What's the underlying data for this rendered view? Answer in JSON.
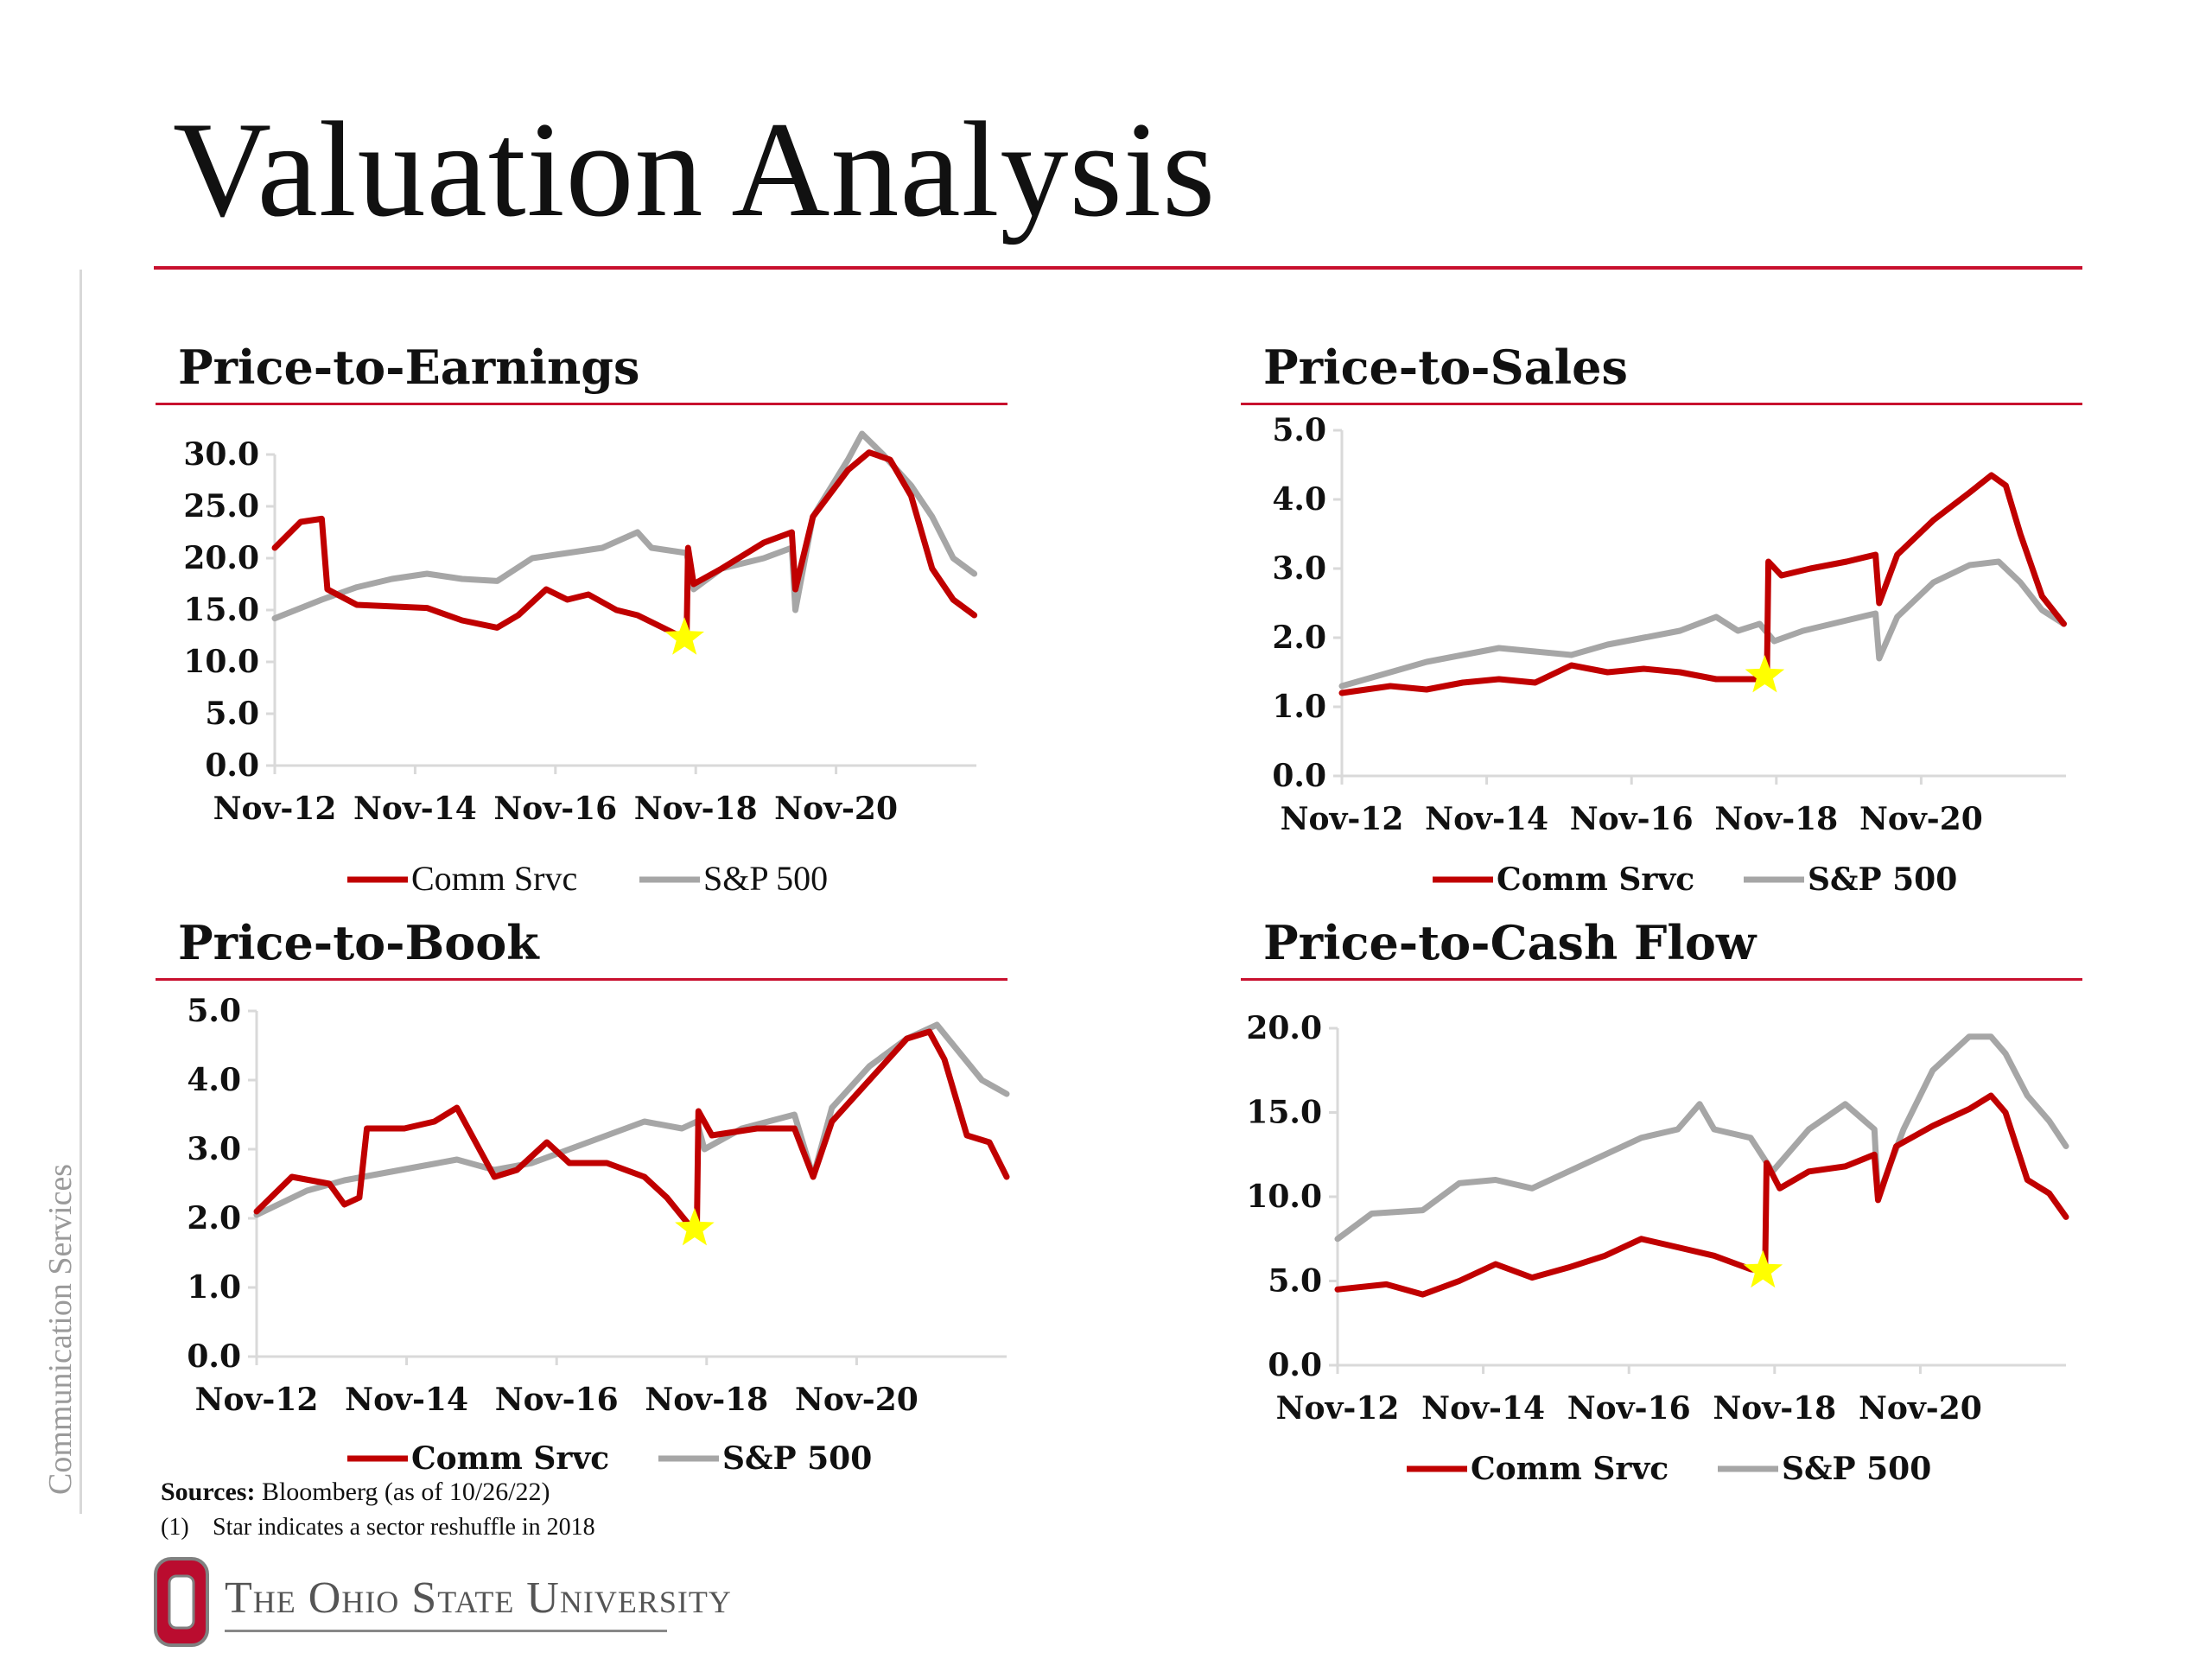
{
  "page": {
    "title": "Valuation Analysis",
    "side_label": "Communication Services",
    "sources_label": "Sources:",
    "sources_text": " Bloomberg (as of 10/26/22)",
    "note_number": "(1)",
    "note_text": "Star indicates a sector reshuffle in 2018",
    "logo_text": "The Ohio State University",
    "colors": {
      "accent": "#c8102e",
      "comm": "#c00000",
      "sp": "#a6a6a6",
      "star": "#ffff00"
    }
  },
  "chart_data": [
    {
      "type": "line",
      "title": "Price-to-Earnings",
      "x_ticks": [
        "Nov-12",
        "Nov-14",
        "Nov-16",
        "Nov-18",
        "Nov-20"
      ],
      "y_ticks": [
        "0.0",
        "5.0",
        "10.0",
        "15.0",
        "20.0",
        "25.0",
        "30.0"
      ],
      "ylim": [
        0,
        30
      ],
      "xlim": [
        2012.83,
        2022.83
      ],
      "legend": [
        "Comm Srvc",
        "S&P 500"
      ],
      "legend_bold": false,
      "star": {
        "x": 2018.67,
        "y": 12.3
      },
      "series": [
        {
          "name": "Comm Srvc",
          "color": "#c00000",
          "points": [
            [
              2012.83,
              21.0
            ],
            [
              2013.2,
              23.5
            ],
            [
              2013.5,
              23.8
            ],
            [
              2013.58,
              17.0
            ],
            [
              2014.0,
              15.5
            ],
            [
              2015.0,
              15.2
            ],
            [
              2015.5,
              14.0
            ],
            [
              2016.0,
              13.3
            ],
            [
              2016.3,
              14.5
            ],
            [
              2016.7,
              17.0
            ],
            [
              2017.0,
              16.0
            ],
            [
              2017.3,
              16.5
            ],
            [
              2017.7,
              15.0
            ],
            [
              2018.0,
              14.5
            ],
            [
              2018.3,
              13.5
            ],
            [
              2018.6,
              12.5
            ],
            [
              2018.7,
              12.3
            ],
            [
              2018.72,
              21.0
            ],
            [
              2018.8,
              17.5
            ],
            [
              2019.2,
              19.0
            ],
            [
              2019.8,
              21.5
            ],
            [
              2020.2,
              22.5
            ],
            [
              2020.25,
              17.0
            ],
            [
              2020.5,
              24.0
            ],
            [
              2021.0,
              28.5
            ],
            [
              2021.3,
              30.2
            ],
            [
              2021.6,
              29.5
            ],
            [
              2021.9,
              26.0
            ],
            [
              2022.2,
              19.0
            ],
            [
              2022.5,
              16.0
            ],
            [
              2022.8,
              14.5
            ]
          ]
        },
        {
          "name": "S&P 500",
          "color": "#a6a6a6",
          "points": [
            [
              2012.83,
              14.2
            ],
            [
              2013.5,
              16.0
            ],
            [
              2014.0,
              17.2
            ],
            [
              2014.5,
              18.0
            ],
            [
              2015.0,
              18.5
            ],
            [
              2015.5,
              18.0
            ],
            [
              2016.0,
              17.8
            ],
            [
              2016.5,
              20.0
            ],
            [
              2017.0,
              20.5
            ],
            [
              2017.5,
              21.0
            ],
            [
              2018.0,
              22.5
            ],
            [
              2018.2,
              21.0
            ],
            [
              2018.7,
              20.5
            ],
            [
              2018.8,
              17.0
            ],
            [
              2019.2,
              19.0
            ],
            [
              2019.8,
              20.0
            ],
            [
              2020.2,
              21.0
            ],
            [
              2020.25,
              15.0
            ],
            [
              2020.5,
              24.0
            ],
            [
              2021.0,
              29.5
            ],
            [
              2021.2,
              32.0
            ],
            [
              2021.5,
              30.0
            ],
            [
              2021.9,
              27.0
            ],
            [
              2022.2,
              24.0
            ],
            [
              2022.5,
              20.0
            ],
            [
              2022.8,
              18.5
            ]
          ]
        }
      ]
    },
    {
      "type": "line",
      "title": "Price-to-Sales",
      "x_ticks": [
        "Nov-12",
        "Nov-14",
        "Nov-16",
        "Nov-18",
        "Nov-20"
      ],
      "y_ticks": [
        "0.0",
        "1.0",
        "2.0",
        "3.0",
        "4.0",
        "5.0"
      ],
      "ylim": [
        0,
        5
      ],
      "xlim": [
        2012.83,
        2022.83
      ],
      "legend": [
        "Comm Srvc",
        "S&P 500"
      ],
      "legend_bold": true,
      "star": {
        "x": 2018.67,
        "y": 1.45
      },
      "series": [
        {
          "name": "Comm Srvc",
          "color": "#c00000",
          "points": [
            [
              2012.83,
              1.2
            ],
            [
              2013.5,
              1.3
            ],
            [
              2014.0,
              1.25
            ],
            [
              2014.5,
              1.35
            ],
            [
              2015.0,
              1.4
            ],
            [
              2015.5,
              1.35
            ],
            [
              2016.0,
              1.6
            ],
            [
              2016.5,
              1.5
            ],
            [
              2017.0,
              1.55
            ],
            [
              2017.5,
              1.5
            ],
            [
              2018.0,
              1.4
            ],
            [
              2018.6,
              1.4
            ],
            [
              2018.7,
              1.45
            ],
            [
              2018.72,
              3.1
            ],
            [
              2018.9,
              2.9
            ],
            [
              2019.3,
              3.0
            ],
            [
              2019.8,
              3.1
            ],
            [
              2020.2,
              3.2
            ],
            [
              2020.25,
              2.5
            ],
            [
              2020.5,
              3.2
            ],
            [
              2021.0,
              3.7
            ],
            [
              2021.5,
              4.1
            ],
            [
              2021.8,
              4.35
            ],
            [
              2022.0,
              4.2
            ],
            [
              2022.2,
              3.5
            ],
            [
              2022.5,
              2.6
            ],
            [
              2022.8,
              2.2
            ]
          ]
        },
        {
          "name": "S&P 500",
          "color": "#a6a6a6",
          "points": [
            [
              2012.83,
              1.3
            ],
            [
              2013.5,
              1.5
            ],
            [
              2014.0,
              1.65
            ],
            [
              2014.5,
              1.75
            ],
            [
              2015.0,
              1.85
            ],
            [
              2015.5,
              1.8
            ],
            [
              2016.0,
              1.75
            ],
            [
              2016.5,
              1.9
            ],
            [
              2017.0,
              2.0
            ],
            [
              2017.5,
              2.1
            ],
            [
              2018.0,
              2.3
            ],
            [
              2018.3,
              2.1
            ],
            [
              2018.6,
              2.2
            ],
            [
              2018.8,
              1.95
            ],
            [
              2019.2,
              2.1
            ],
            [
              2019.8,
              2.25
            ],
            [
              2020.2,
              2.35
            ],
            [
              2020.25,
              1.7
            ],
            [
              2020.5,
              2.3
            ],
            [
              2021.0,
              2.8
            ],
            [
              2021.5,
              3.05
            ],
            [
              2021.9,
              3.1
            ],
            [
              2022.2,
              2.8
            ],
            [
              2022.5,
              2.4
            ],
            [
              2022.8,
              2.2
            ]
          ]
        }
      ]
    },
    {
      "type": "line",
      "title": "Price-to-Book",
      "x_ticks": [
        "Nov-12",
        "Nov-14",
        "Nov-16",
        "Nov-18",
        "Nov-20"
      ],
      "y_ticks": [
        "0.0",
        "1.0",
        "2.0",
        "3.0",
        "4.0",
        "5.0"
      ],
      "ylim": [
        0,
        5
      ],
      "xlim": [
        2012.83,
        2022.83
      ],
      "legend": [
        "Comm Srvc",
        "S&P 500"
      ],
      "legend_bold": true,
      "star": {
        "x": 2018.67,
        "y": 1.85
      },
      "series": [
        {
          "name": "Comm Srvc",
          "color": "#c00000",
          "points": [
            [
              2012.83,
              2.1
            ],
            [
              2013.3,
              2.6
            ],
            [
              2013.8,
              2.5
            ],
            [
              2014.0,
              2.2
            ],
            [
              2014.2,
              2.3
            ],
            [
              2014.3,
              3.3
            ],
            [
              2014.8,
              3.3
            ],
            [
              2015.2,
              3.4
            ],
            [
              2015.5,
              3.6
            ],
            [
              2015.8,
              3.0
            ],
            [
              2016.0,
              2.6
            ],
            [
              2016.3,
              2.7
            ],
            [
              2016.7,
              3.1
            ],
            [
              2017.0,
              2.8
            ],
            [
              2017.5,
              2.8
            ],
            [
              2018.0,
              2.6
            ],
            [
              2018.3,
              2.3
            ],
            [
              2018.6,
              1.9
            ],
            [
              2018.7,
              1.85
            ],
            [
              2018.72,
              3.55
            ],
            [
              2018.9,
              3.2
            ],
            [
              2019.5,
              3.3
            ],
            [
              2020.0,
              3.3
            ],
            [
              2020.25,
              2.6
            ],
            [
              2020.5,
              3.4
            ],
            [
              2021.0,
              4.0
            ],
            [
              2021.5,
              4.6
            ],
            [
              2021.8,
              4.7
            ],
            [
              2022.0,
              4.3
            ],
            [
              2022.3,
              3.2
            ],
            [
              2022.6,
              3.1
            ],
            [
              2022.83,
              2.6
            ]
          ]
        },
        {
          "name": "S&P 500",
          "color": "#a6a6a6",
          "points": [
            [
              2012.83,
              2.05
            ],
            [
              2013.5,
              2.4
            ],
            [
              2014.0,
              2.55
            ],
            [
              2014.5,
              2.65
            ],
            [
              2015.0,
              2.75
            ],
            [
              2015.5,
              2.85
            ],
            [
              2016.0,
              2.7
            ],
            [
              2016.5,
              2.8
            ],
            [
              2017.0,
              3.0
            ],
            [
              2017.5,
              3.2
            ],
            [
              2018.0,
              3.4
            ],
            [
              2018.5,
              3.3
            ],
            [
              2018.7,
              3.4
            ],
            [
              2018.8,
              3.0
            ],
            [
              2019.3,
              3.3
            ],
            [
              2020.0,
              3.5
            ],
            [
              2020.25,
              2.6
            ],
            [
              2020.5,
              3.6
            ],
            [
              2021.0,
              4.2
            ],
            [
              2021.5,
              4.6
            ],
            [
              2021.9,
              4.8
            ],
            [
              2022.2,
              4.4
            ],
            [
              2022.5,
              4.0
            ],
            [
              2022.83,
              3.8
            ]
          ]
        }
      ]
    },
    {
      "type": "line",
      "title": "Price-to-Cash Flow",
      "x_ticks": [
        "Nov-12",
        "Nov-14",
        "Nov-16",
        "Nov-18",
        "Nov-20"
      ],
      "y_ticks": [
        "0.0",
        "5.0",
        "10.0",
        "15.0",
        "20.0"
      ],
      "ylim": [
        0,
        20
      ],
      "xlim": [
        2012.83,
        2022.83
      ],
      "legend": [
        "Comm Srvc",
        "S&P 500"
      ],
      "legend_bold": true,
      "star": {
        "x": 2018.67,
        "y": 5.6
      },
      "series": [
        {
          "name": "Comm Srvc",
          "color": "#c00000",
          "points": [
            [
              2012.83,
              4.5
            ],
            [
              2013.5,
              4.8
            ],
            [
              2014.0,
              4.2
            ],
            [
              2014.5,
              5.0
            ],
            [
              2015.0,
              6.0
            ],
            [
              2015.5,
              5.2
            ],
            [
              2016.0,
              5.8
            ],
            [
              2016.5,
              6.5
            ],
            [
              2017.0,
              7.5
            ],
            [
              2017.5,
              7.0
            ],
            [
              2018.0,
              6.5
            ],
            [
              2018.5,
              5.7
            ],
            [
              2018.7,
              5.6
            ],
            [
              2018.72,
              12.0
            ],
            [
              2018.9,
              10.5
            ],
            [
              2019.3,
              11.5
            ],
            [
              2019.8,
              11.8
            ],
            [
              2020.2,
              12.5
            ],
            [
              2020.25,
              9.8
            ],
            [
              2020.5,
              13.0
            ],
            [
              2021.0,
              14.2
            ],
            [
              2021.5,
              15.2
            ],
            [
              2021.8,
              16.0
            ],
            [
              2022.0,
              15.0
            ],
            [
              2022.3,
              11.0
            ],
            [
              2022.6,
              10.2
            ],
            [
              2022.83,
              8.8
            ]
          ]
        },
        {
          "name": "S&P 500",
          "color": "#a6a6a6",
          "points": [
            [
              2012.83,
              7.5
            ],
            [
              2013.3,
              9.0
            ],
            [
              2014.0,
              9.2
            ],
            [
              2014.5,
              10.8
            ],
            [
              2015.0,
              11.0
            ],
            [
              2015.5,
              10.5
            ],
            [
              2016.0,
              11.5
            ],
            [
              2016.5,
              12.5
            ],
            [
              2017.0,
              13.5
            ],
            [
              2017.5,
              14.0
            ],
            [
              2017.8,
              15.5
            ],
            [
              2018.0,
              14.0
            ],
            [
              2018.5,
              13.5
            ],
            [
              2018.8,
              11.5
            ],
            [
              2019.3,
              14.0
            ],
            [
              2019.8,
              15.5
            ],
            [
              2020.2,
              14.0
            ],
            [
              2020.25,
              10.0
            ],
            [
              2020.6,
              14.0
            ],
            [
              2021.0,
              17.5
            ],
            [
              2021.5,
              19.5
            ],
            [
              2021.8,
              19.5
            ],
            [
              2022.0,
              18.5
            ],
            [
              2022.3,
              16.0
            ],
            [
              2022.6,
              14.5
            ],
            [
              2022.83,
              13.0
            ]
          ]
        }
      ]
    }
  ]
}
